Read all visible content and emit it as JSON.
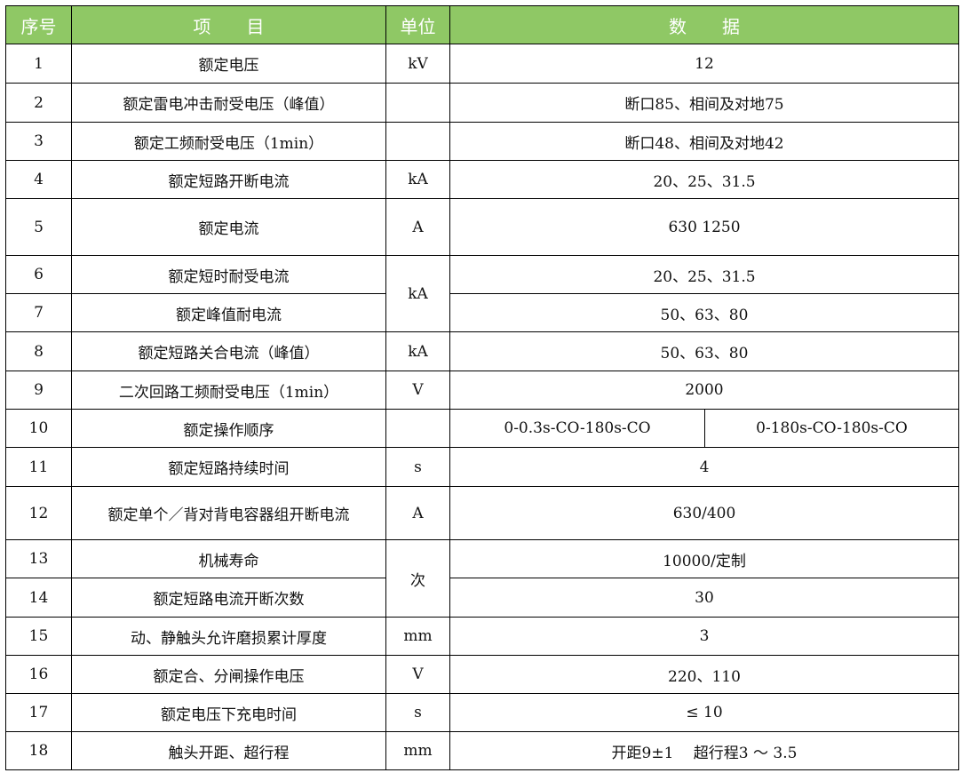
{
  "header": {
    "no": "序号",
    "item": "项　　目",
    "unit": "单位",
    "data": "数　　据"
  },
  "colors": {
    "header_bg": "#8fc865"
  },
  "rows": [
    {
      "no": "1",
      "item": "额定电压",
      "unit": "kV",
      "data": "12"
    },
    {
      "no": "2",
      "item": "额定雷电冲击耐受电压（峰值）",
      "unit": "",
      "data": "断口85、相间及对地75"
    },
    {
      "no": "3",
      "item": "额定工频耐受电压（1min）",
      "unit": "",
      "data": "断口48、相间及对地42"
    },
    {
      "no": "4",
      "item": "额定短路开断电流",
      "unit": "kA",
      "data": "20、25、31.5"
    },
    {
      "no": "5",
      "item": "额定电流",
      "unit": "A",
      "data": "630 1250"
    },
    {
      "no": "6",
      "item": "额定短时耐受电流",
      "unit": "kA",
      "data": "20、25、31.5"
    },
    {
      "no": "7",
      "item": "额定峰值耐电流",
      "data": "50、63、80"
    },
    {
      "no": "8",
      "item": "额定短路关合电流（峰值）",
      "unit": "kA",
      "data": "50、63、80"
    },
    {
      "no": "9",
      "item": "二次回路工频耐受电压（1min）",
      "unit": "V",
      "data": "2000"
    },
    {
      "no": "10",
      "item": "额定操作顺序",
      "unit": "",
      "data": "0-0.3s-CO-180s-CO",
      "data2": "0-180s-CO-180s-CO"
    },
    {
      "no": "11",
      "item": "额定短路持续时间",
      "unit": "s",
      "data": "4"
    },
    {
      "no": "12",
      "item": "额定单个／背对背电容器组开断电流",
      "unit": "A",
      "data": "630/400"
    },
    {
      "no": "13",
      "item": "机械寿命",
      "unit": "次",
      "data": "10000/定制"
    },
    {
      "no": "14",
      "item": "额定短路电流开断次数",
      "data": "30"
    },
    {
      "no": "15",
      "item": "动、静触头允许磨损累计厚度",
      "unit": "mm",
      "data": "3"
    },
    {
      "no": "16",
      "item": "额定合、分闸操作电压",
      "unit": "V",
      "data": "220、110"
    },
    {
      "no": "17",
      "item": "额定电压下充电时间",
      "unit": "s",
      "data": "≤ 10"
    },
    {
      "no": "18",
      "item": "触头开距、超行程",
      "unit": "mm",
      "data": "开距9±1　 超行程3 ～ 3.5"
    }
  ]
}
